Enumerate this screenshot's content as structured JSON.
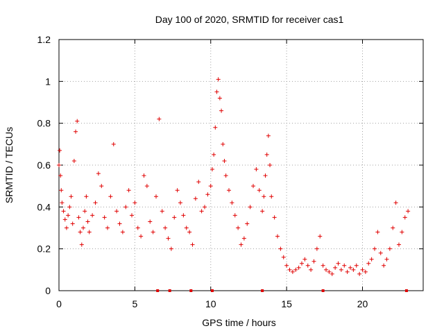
{
  "chart_data": {
    "type": "scatter",
    "title": "Day 100 of 2020, SRMTID for receiver cas1",
    "xlabel": "GPS time / hours",
    "ylabel": "SRMTID / TECUs",
    "xlim": [
      0,
      24
    ],
    "ylim": [
      0,
      1.2
    ],
    "xticks": [
      0,
      5,
      10,
      15,
      20
    ],
    "xtick_labels": [
      "0",
      "5",
      "10",
      "15",
      "20"
    ],
    "yticks": [
      0,
      0.2,
      0.4,
      0.6,
      0.8,
      1,
      1.2
    ],
    "ytick_labels": [
      "0",
      "0.2",
      "0.4",
      "0.6",
      "0.8",
      "1",
      "1.2"
    ],
    "grid": true,
    "marker": "+",
    "color": "#e00000",
    "series": [
      {
        "name": "SRMTID",
        "x": [
          0.0,
          0.05,
          0.1,
          0.15,
          0.2,
          0.3,
          0.4,
          0.5,
          0.6,
          0.7,
          0.8,
          0.9,
          1.0,
          1.1,
          1.2,
          1.3,
          1.4,
          1.5,
          1.6,
          1.7,
          1.8,
          1.9,
          2.0,
          2.2,
          2.4,
          2.6,
          2.8,
          3.0,
          3.2,
          3.4,
          3.6,
          3.8,
          4.0,
          4.2,
          4.4,
          4.6,
          4.8,
          5.0,
          5.2,
          5.4,
          5.6,
          5.8,
          6.0,
          6.2,
          6.4,
          6.6,
          6.8,
          7.0,
          7.2,
          7.4,
          7.6,
          7.8,
          8.0,
          8.2,
          8.4,
          8.6,
          8.8,
          9.0,
          9.2,
          9.4,
          9.6,
          9.8,
          10.0,
          10.1,
          10.2,
          10.3,
          10.4,
          10.5,
          10.6,
          10.7,
          10.8,
          10.9,
          11.0,
          11.2,
          11.4,
          11.6,
          11.8,
          12.0,
          12.2,
          12.4,
          12.6,
          12.8,
          13.0,
          13.2,
          13.4,
          13.5,
          13.6,
          13.7,
          13.8,
          13.9,
          14.0,
          14.2,
          14.4,
          14.6,
          14.8,
          15.0,
          15.2,
          15.4,
          15.6,
          15.8,
          16.0,
          16.2,
          16.4,
          16.6,
          16.8,
          17.0,
          17.2,
          17.4,
          17.6,
          17.8,
          18.0,
          18.2,
          18.4,
          18.6,
          18.8,
          19.0,
          19.2,
          19.4,
          19.6,
          19.8,
          20.0,
          20.2,
          20.4,
          20.6,
          20.8,
          21.0,
          21.2,
          21.4,
          21.6,
          21.8,
          22.0,
          22.2,
          22.4,
          22.6,
          22.8,
          23.0
        ],
        "y": [
          0.6,
          0.67,
          0.55,
          0.48,
          0.42,
          0.38,
          0.34,
          0.3,
          0.36,
          0.4,
          0.45,
          0.32,
          0.62,
          0.76,
          0.81,
          0.35,
          0.28,
          0.22,
          0.3,
          0.38,
          0.45,
          0.33,
          0.28,
          0.36,
          0.42,
          0.56,
          0.5,
          0.35,
          0.3,
          0.45,
          0.7,
          0.38,
          0.32,
          0.28,
          0.4,
          0.48,
          0.36,
          0.42,
          0.3,
          0.26,
          0.55,
          0.5,
          0.33,
          0.28,
          0.45,
          0.82,
          0.38,
          0.3,
          0.25,
          0.2,
          0.35,
          0.48,
          0.42,
          0.36,
          0.3,
          0.28,
          0.22,
          0.44,
          0.52,
          0.38,
          0.4,
          0.46,
          0.5,
          0.58,
          0.65,
          0.78,
          0.95,
          1.01,
          0.92,
          0.86,
          0.7,
          0.62,
          0.55,
          0.48,
          0.42,
          0.36,
          0.3,
          0.22,
          0.25,
          0.32,
          0.4,
          0.5,
          0.58,
          0.48,
          0.38,
          0.45,
          0.55,
          0.65,
          0.74,
          0.6,
          0.45,
          0.35,
          0.26,
          0.2,
          0.16,
          0.12,
          0.1,
          0.09,
          0.1,
          0.11,
          0.13,
          0.15,
          0.12,
          0.1,
          0.14,
          0.2,
          0.26,
          0.12,
          0.1,
          0.09,
          0.08,
          0.11,
          0.13,
          0.1,
          0.12,
          0.09,
          0.11,
          0.1,
          0.12,
          0.08,
          0.1,
          0.09,
          0.13,
          0.15,
          0.2,
          0.28,
          0.18,
          0.12,
          0.15,
          0.2,
          0.3,
          0.42,
          0.22,
          0.28,
          0.35,
          0.38
        ]
      }
    ],
    "gap_markers_x": [
      6.5,
      7.3,
      8.7,
      10.1,
      13.4,
      17.4,
      22.9
    ]
  }
}
